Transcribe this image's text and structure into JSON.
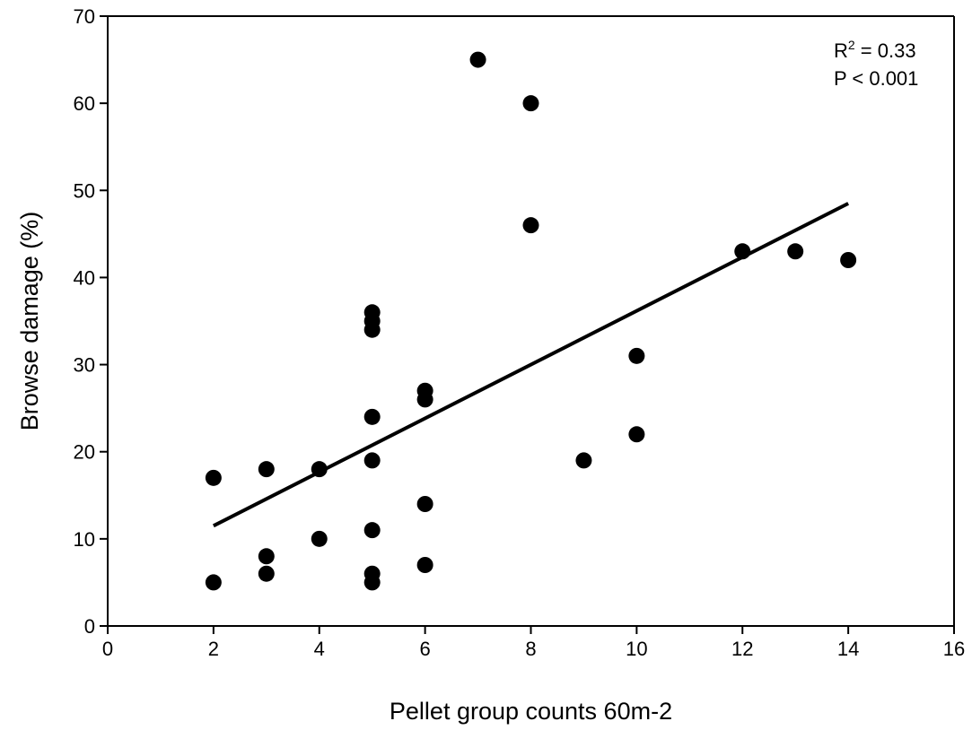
{
  "chart_data": {
    "type": "scatter",
    "xlabel": "Pellet group counts 60m-2",
    "ylabel": "Browse damage (%)",
    "xlim": [
      0,
      16
    ],
    "ylim": [
      0,
      70
    ],
    "x_ticks": [
      "0",
      "2",
      "4",
      "6",
      "8",
      "10",
      "12",
      "14",
      "16"
    ],
    "y_ticks": [
      "0",
      "10",
      "20",
      "30",
      "40",
      "50",
      "60",
      "70"
    ],
    "grid": false,
    "points": [
      {
        "x": 2,
        "y": 17
      },
      {
        "x": 2,
        "y": 5
      },
      {
        "x": 3,
        "y": 18
      },
      {
        "x": 3,
        "y": 8
      },
      {
        "x": 3,
        "y": 6
      },
      {
        "x": 4,
        "y": 18
      },
      {
        "x": 4,
        "y": 10
      },
      {
        "x": 5,
        "y": 36
      },
      {
        "x": 5,
        "y": 35
      },
      {
        "x": 5,
        "y": 34
      },
      {
        "x": 5,
        "y": 24
      },
      {
        "x": 5,
        "y": 19
      },
      {
        "x": 5,
        "y": 11
      },
      {
        "x": 5,
        "y": 6
      },
      {
        "x": 5,
        "y": 5
      },
      {
        "x": 6,
        "y": 27
      },
      {
        "x": 6,
        "y": 26
      },
      {
        "x": 6,
        "y": 14
      },
      {
        "x": 6,
        "y": 7
      },
      {
        "x": 7,
        "y": 65
      },
      {
        "x": 8,
        "y": 60
      },
      {
        "x": 8,
        "y": 46
      },
      {
        "x": 9,
        "y": 19
      },
      {
        "x": 10,
        "y": 31
      },
      {
        "x": 10,
        "y": 22
      },
      {
        "x": 12,
        "y": 43
      },
      {
        "x": 13,
        "y": 43
      },
      {
        "x": 14,
        "y": 42
      }
    ],
    "regression_line": {
      "x": [
        2,
        14
      ],
      "y": [
        11.5,
        48.5
      ]
    },
    "annotation": {
      "r2_prefix": "R",
      "r2_superscript": "2",
      "r2_value": " = 0.33",
      "p_text": "P < 0.001"
    }
  }
}
